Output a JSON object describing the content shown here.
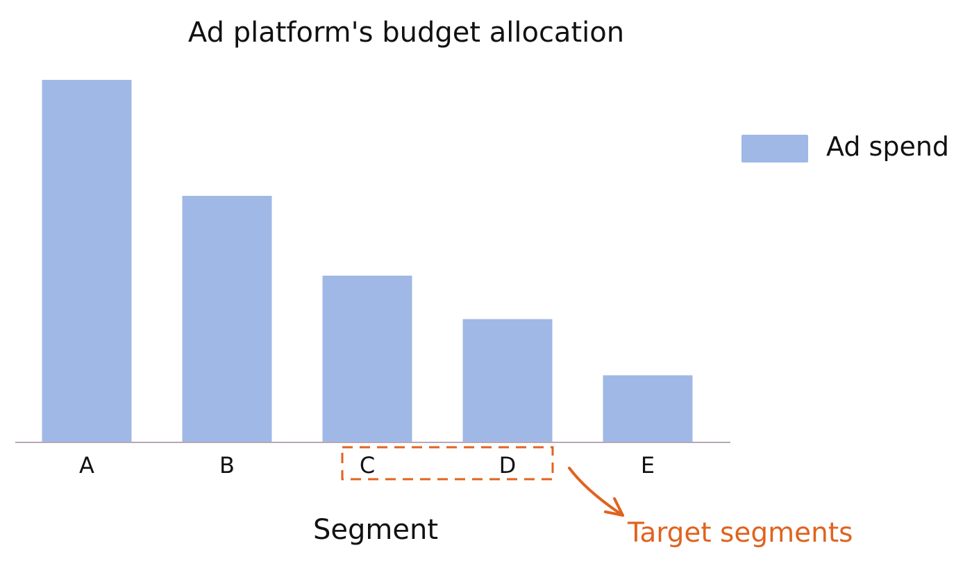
{
  "chart_data": {
    "type": "bar",
    "title": "Ad platform's budget allocation",
    "xlabel": "Segment",
    "ylabel": "",
    "categories": [
      "A",
      "B",
      "C",
      "D",
      "E"
    ],
    "series": [
      {
        "name": "Ad spend",
        "values": [
          100,
          68,
          46,
          34,
          18.5
        ]
      }
    ],
    "ylim": [
      0,
      100
    ],
    "grid": false,
    "legend_position": "right",
    "colors": {
      "bar": "#a0b8e6",
      "axis": "#b7a7b9",
      "annotation": "#e0631f",
      "text": "#111111"
    },
    "annotation": {
      "label": "Target segments",
      "highlighted_categories": [
        "C",
        "D"
      ]
    }
  }
}
